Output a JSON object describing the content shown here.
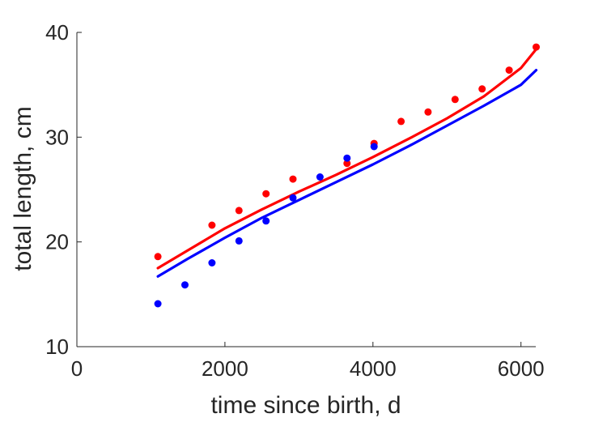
{
  "chart_data": {
    "type": "scatter",
    "title": "",
    "xlabel": "time since birth, d",
    "ylabel": "total length, cm",
    "xlim": [
      0,
      6200
    ],
    "ylim": [
      10,
      40
    ],
    "xticks": [
      0,
      2000,
      4000,
      6000
    ],
    "yticks": [
      10,
      20,
      30,
      40
    ],
    "grid": false,
    "legend": "none",
    "series": [
      {
        "color": "#ff0000",
        "points": {
          "x": [
            1095,
            1825,
            2190,
            2555,
            2920,
            3650,
            4015,
            4380,
            4745,
            5110,
            5475,
            5840,
            6205
          ],
          "y": [
            18.6,
            21.6,
            23.0,
            24.6,
            26.0,
            27.5,
            29.4,
            31.5,
            32.4,
            33.6,
            34.6,
            36.4,
            38.6
          ]
        },
        "fit": {
          "x": [
            1095,
            1500,
            2000,
            2500,
            3000,
            3500,
            4000,
            4500,
            5000,
            5500,
            6000,
            6205
          ],
          "y": [
            17.5,
            19.2,
            21.3,
            23.1,
            24.8,
            26.4,
            28.1,
            29.9,
            31.8,
            33.9,
            36.6,
            38.4
          ]
        }
      },
      {
        "color": "#0000ff",
        "points": {
          "x": [
            1095,
            1460,
            1825,
            2190,
            2555,
            2920,
            3285,
            3650,
            4015
          ],
          "y": [
            14.1,
            15.9,
            18.0,
            20.1,
            22.0,
            24.2,
            26.2,
            28.0,
            29.1
          ]
        },
        "fit": {
          "x": [
            1095,
            1500,
            2000,
            2500,
            3000,
            3500,
            4000,
            4500,
            5000,
            5500,
            6000,
            6205
          ],
          "y": [
            16.7,
            18.4,
            20.4,
            22.3,
            24.0,
            25.7,
            27.4,
            29.2,
            31.1,
            33.0,
            35.0,
            36.4
          ]
        }
      }
    ]
  }
}
